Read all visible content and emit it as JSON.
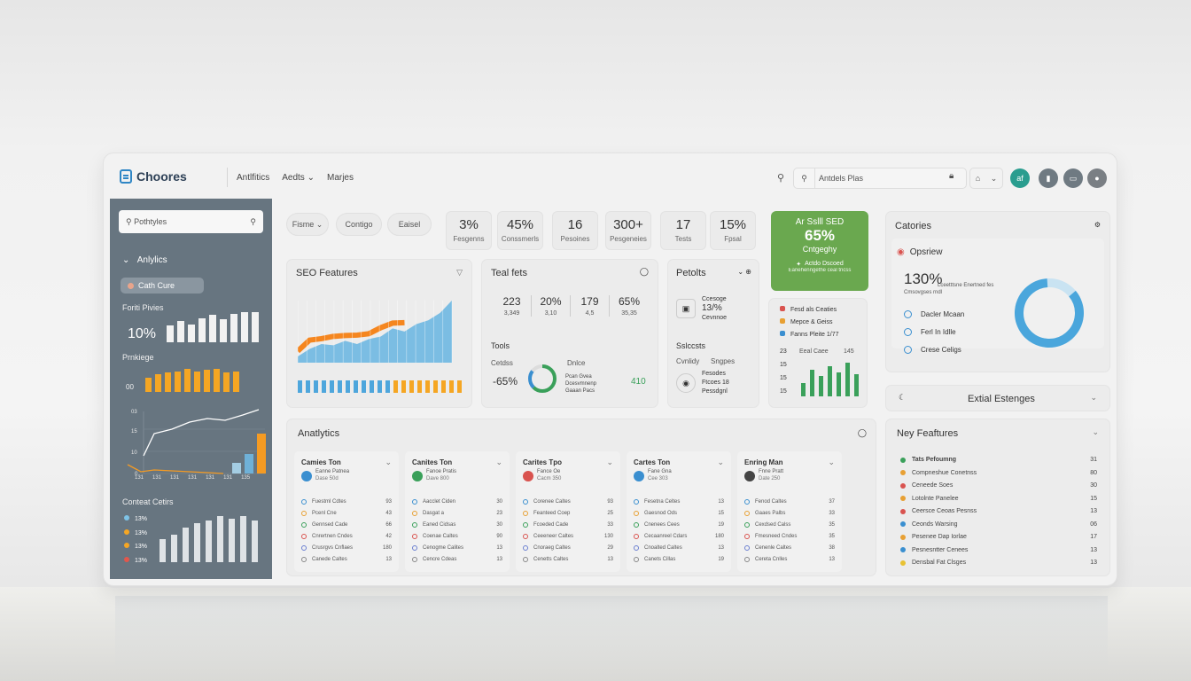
{
  "app": {
    "name": "Choores"
  },
  "nav": {
    "links": [
      "Antlfitics",
      "Aedts",
      "Marjes"
    ]
  },
  "top": {
    "search_text": "Antdels Plas",
    "badge": "af"
  },
  "sidebar": {
    "search_placeholder": "Pothtyles",
    "section": "Anlylics",
    "pill": "Cath Cure",
    "label1": "Foriti Pivies",
    "stat": "10%",
    "label2": "Prnkiege",
    "axis_top": "00",
    "chart_ticks": [
      "03",
      "15",
      "10",
      "0"
    ],
    "chart_xlabels": [
      "131",
      "131",
      "131",
      "131",
      "131",
      "131",
      "135"
    ],
    "legend_title": "Conteat Cetirs",
    "legend": [
      "13%",
      "13%",
      "13%",
      "13%"
    ],
    "bars_white": [
      0.55,
      0.7,
      0.6,
      0.8,
      0.9,
      0.75,
      0.95,
      1.0,
      1.0
    ],
    "bars_orange": [
      0.6,
      0.75,
      0.85,
      0.9,
      1.0,
      0.9,
      0.95,
      1.0,
      0.85,
      0.9
    ],
    "bars_dist": [
      0.5,
      0.6,
      0.75,
      0.85,
      0.9,
      1.0,
      0.95,
      1.0,
      0.9
    ]
  },
  "filters": [
    "Fisme",
    "Contigo",
    "Eaisel"
  ],
  "stats": [
    {
      "value": "3%",
      "label": "Fesgenns"
    },
    {
      "value": "45%",
      "label": "Conssmerls"
    },
    {
      "value": "16",
      "label": "Pesoines"
    },
    {
      "value": "300+",
      "label": "Pesgeneies"
    },
    {
      "value": "17",
      "label": "Tests"
    },
    {
      "value": "15%",
      "label": "Fpsal"
    }
  ],
  "promo": {
    "title": "Ar Sslll SED",
    "value": "65%",
    "sub": "Cntgeghy",
    "line1": "Actdo Dscoed",
    "line2": "Eanehenngethe ceal tncss"
  },
  "seo": {
    "title": "SEO Features",
    "area": [
      0.1,
      0.22,
      0.3,
      0.28,
      0.35,
      0.3,
      0.38,
      0.42,
      0.55,
      0.5,
      0.62,
      0.68,
      0.8,
      1.0
    ],
    "bars": [
      0.8,
      0.8,
      0.8,
      0.8,
      0.8,
      0.8,
      0.8,
      0.8,
      0.8,
      0.8,
      0.8,
      0.8,
      0.8,
      0.8,
      0.8,
      0.8,
      0.8,
      0.8,
      0.8,
      0.8,
      0.8
    ]
  },
  "teal": {
    "title": "Teal fets",
    "cols": [
      {
        "v": "223",
        "s": "3,349"
      },
      {
        "v": "20%",
        "s": "3,10"
      },
      {
        "v": "179",
        "s": "4,5"
      },
      {
        "v": "65%",
        "s": "35,35"
      }
    ],
    "tools": "Tools",
    "c1": "Cetdss",
    "c2": "Dnlce",
    "pct": "-65%",
    "d1": "Pcan Gvea",
    "d2": "Dcesvmnenp",
    "d3": "Gaaan Pacs",
    "num": "410"
  },
  "products": {
    "title": "Petolts",
    "r1a": "Ccesoge",
    "r1b": "13/%",
    "r1c": "Cevnnoe",
    "sec": "Sslccsts",
    "s1": "Cvnlidy",
    "s2": "Sngpes",
    "r2a": "Fesodes",
    "r2b": "Ftcoes 18",
    "r2c": "Pessdgnl"
  },
  "mini": {
    "items": [
      "Fesd als Ceaties",
      "Mepce & Geiss",
      "Fanns Pleite 1/77"
    ],
    "title": "Eeal Caee",
    "num": "145",
    "ticks": [
      "23",
      "15",
      "15",
      "15"
    ],
    "bars": [
      0.4,
      0.8,
      0.6,
      0.9,
      0.7,
      1.0,
      0.65
    ]
  },
  "categories": {
    "title": "Catories",
    "overview": "Opsriew",
    "big": "130%",
    "sub": "Cmsovgses rndl",
    "note": "Lceetttsne Enertned fes",
    "items": [
      "Dacler Mcaan",
      "Ferl In Idlle",
      "Crese Celigs"
    ],
    "donut": 0.85
  },
  "external": {
    "title": "Extial Estenges"
  },
  "analytics": {
    "title": "Anatlytics",
    "columns": [
      {
        "title": "Camies Ton",
        "sub": "Eanne Patnea",
        "sub2": "Dase 50d",
        "rows": [
          [
            "Fuestml Cdtes",
            "93"
          ],
          [
            "Pcenl Cne",
            "43"
          ],
          [
            "Gennsed Cade",
            "66"
          ],
          [
            "Cnrertnen Cndes",
            "42"
          ],
          [
            "Crusrgvs Cnflaes",
            "180"
          ],
          [
            "Canede Caltes",
            "13"
          ]
        ]
      },
      {
        "title": "Canites Ton",
        "sub": "Fanoe Pratis",
        "sub2": "Dave 800",
        "rows": [
          [
            "Aacclet Ciden",
            "30"
          ],
          [
            "Dasgat a",
            "23"
          ],
          [
            "Eaned Cidsas",
            "30"
          ],
          [
            "Coenae Caltes",
            "90"
          ],
          [
            "Cenogme Calites",
            "13"
          ],
          [
            "Cencre Cdeas",
            "13"
          ]
        ]
      },
      {
        "title": "Carites Tpo",
        "sub": "Fance Oe",
        "sub2": "Cacm 350",
        "rows": [
          [
            "Corenee Caltes",
            "93"
          ],
          [
            "Feanteed Coep",
            "25"
          ],
          [
            "Fcoeded Cade",
            "33"
          ],
          [
            "Ceeeneer Caltes",
            "130"
          ],
          [
            "Cnoraeg Caltes",
            "29"
          ],
          [
            "Cenetts Caltes",
            "13"
          ]
        ]
      },
      {
        "title": "Cartes Ton",
        "sub": "Fane Gna",
        "sub2": "Cee 303",
        "rows": [
          [
            "Fesetna Celtes",
            "13"
          ],
          [
            "Gaesnod Ods",
            "15"
          ],
          [
            "Cnenees Cees",
            "19"
          ],
          [
            "Cecaanreel Cdars",
            "180"
          ],
          [
            "Cnoalted Caltes",
            "13"
          ],
          [
            "Canets Cillas",
            "19"
          ]
        ]
      },
      {
        "title": "Enring Man",
        "sub": "Fnne Pratt",
        "sub2": "Date 250",
        "rows": [
          [
            "Fenod Caltes",
            "37"
          ],
          [
            "Gaaes Palbs",
            "33"
          ],
          [
            "Cexdsed Calss",
            "35"
          ],
          [
            "Fmesneed Cndes",
            "35"
          ],
          [
            "Cenenle Caltes",
            "38"
          ],
          [
            "Cereta Cnlles",
            "13"
          ]
        ]
      }
    ]
  },
  "features": {
    "title": "Ney Feaftures",
    "rows": [
      [
        "Tats Pefoumng",
        "31"
      ],
      [
        "Compneshue Conetnss",
        "80"
      ],
      [
        "Ceneede Soes",
        "30"
      ],
      [
        "Lotolnte Panelee",
        "15"
      ],
      [
        "Ceersce Ceoas Pesnss",
        "13"
      ],
      [
        "Ceonds Warsing",
        "06"
      ],
      [
        "Pesenee Dap Iorlae",
        "17"
      ],
      [
        "Pesnesntter Cenees",
        "13"
      ],
      [
        "Densbal Fat Clsges",
        "13"
      ]
    ]
  }
}
